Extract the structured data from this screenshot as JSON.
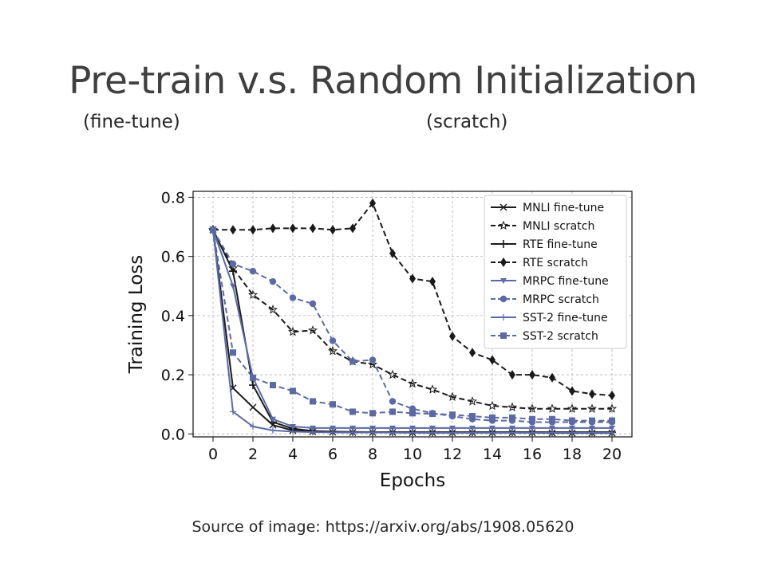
{
  "slide": {
    "title": "Pre-train v.s. Random Initialization",
    "subtitle_left": "(fine-tune)",
    "subtitle_right": "(scratch)",
    "source": "Source of image: https://arxiv.org/abs/1908.05620"
  },
  "chart_data": {
    "type": "line",
    "title": "",
    "xlabel": "Epochs",
    "ylabel": "Training Loss",
    "xlim": [
      -1,
      21
    ],
    "ylim": [
      -0.01,
      0.82
    ],
    "xticks": [
      0,
      2,
      4,
      6,
      8,
      10,
      12,
      14,
      16,
      18,
      20
    ],
    "yticks": [
      0.0,
      0.2,
      0.4,
      0.6,
      0.8
    ],
    "ytick_labels": [
      "0.0",
      "0.2",
      "0.4",
      "0.6",
      "0.8"
    ],
    "grid": true,
    "legend_position": "top-right",
    "x": [
      0,
      1,
      2,
      3,
      4,
      5,
      6,
      7,
      8,
      9,
      10,
      11,
      12,
      13,
      14,
      15,
      16,
      17,
      18,
      19,
      20
    ],
    "series": [
      {
        "name": "MNLI fine-tune",
        "color": "#1a1a1a",
        "dash": "solid",
        "marker": "x",
        "values": [
          0.69,
          0.155,
          0.09,
          0.03,
          0.012,
          0.008,
          0.006,
          0.005,
          0.005,
          0.005,
          0.004,
          0.004,
          0.004,
          0.004,
          0.004,
          0.004,
          0.004,
          0.003,
          0.003,
          0.003,
          0.003
        ]
      },
      {
        "name": "MNLI scratch",
        "color": "#1a1a1a",
        "dash": "dashed",
        "marker": "star",
        "values": [
          0.69,
          0.56,
          0.47,
          0.42,
          0.345,
          0.35,
          0.28,
          0.245,
          0.235,
          0.2,
          0.17,
          0.15,
          0.125,
          0.11,
          0.095,
          0.09,
          0.085,
          0.085,
          0.085,
          0.085,
          0.085
        ]
      },
      {
        "name": "RTE fine-tune",
        "color": "#1a1a1a",
        "dash": "solid",
        "marker": "plus",
        "values": [
          0.69,
          0.55,
          0.165,
          0.04,
          0.018,
          0.01,
          0.008,
          0.007,
          0.006,
          0.006,
          0.006,
          0.006,
          0.006,
          0.006,
          0.006,
          0.006,
          0.006,
          0.006,
          0.006,
          0.006,
          0.006
        ]
      },
      {
        "name": "RTE scratch",
        "color": "#1a1a1a",
        "dash": "dashed",
        "marker": "diamond",
        "values": [
          0.69,
          0.69,
          0.69,
          0.695,
          0.695,
          0.695,
          0.69,
          0.695,
          0.78,
          0.61,
          0.525,
          0.515,
          0.33,
          0.275,
          0.25,
          0.2,
          0.2,
          0.19,
          0.145,
          0.135,
          0.13
        ]
      },
      {
        "name": "MRPC fine-tune",
        "color": "#5b6aa6",
        "dash": "solid",
        "marker": "tri",
        "values": [
          0.69,
          0.5,
          0.19,
          0.05,
          0.025,
          0.02,
          0.02,
          0.02,
          0.02,
          0.02,
          0.02,
          0.02,
          0.02,
          0.02,
          0.02,
          0.02,
          0.02,
          0.02,
          0.02,
          0.02,
          0.02
        ]
      },
      {
        "name": "MRPC scratch",
        "color": "#5b6aa6",
        "dash": "dashed",
        "marker": "circle",
        "values": [
          0.69,
          0.575,
          0.55,
          0.515,
          0.46,
          0.44,
          0.315,
          0.245,
          0.25,
          0.11,
          0.085,
          0.07,
          0.06,
          0.05,
          0.045,
          0.045,
          0.04,
          0.04,
          0.04,
          0.04,
          0.04
        ]
      },
      {
        "name": "SST-2 fine-tune",
        "color": "#5b6aa6",
        "dash": "solid",
        "marker": "thinplus",
        "values": [
          0.69,
          0.075,
          0.025,
          0.012,
          0.008,
          0.006,
          0.005,
          0.005,
          0.005,
          0.004,
          0.004,
          0.004,
          0.004,
          0.004,
          0.004,
          0.004,
          0.004,
          0.004,
          0.004,
          0.004,
          0.004
        ]
      },
      {
        "name": "SST-2 scratch",
        "color": "#5b6aa6",
        "dash": "dashed",
        "marker": "square",
        "values": [
          0.69,
          0.275,
          0.19,
          0.165,
          0.145,
          0.11,
          0.1,
          0.075,
          0.07,
          0.075,
          0.07,
          0.068,
          0.065,
          0.06,
          0.055,
          0.055,
          0.05,
          0.05,
          0.045,
          0.045,
          0.045
        ]
      }
    ]
  }
}
